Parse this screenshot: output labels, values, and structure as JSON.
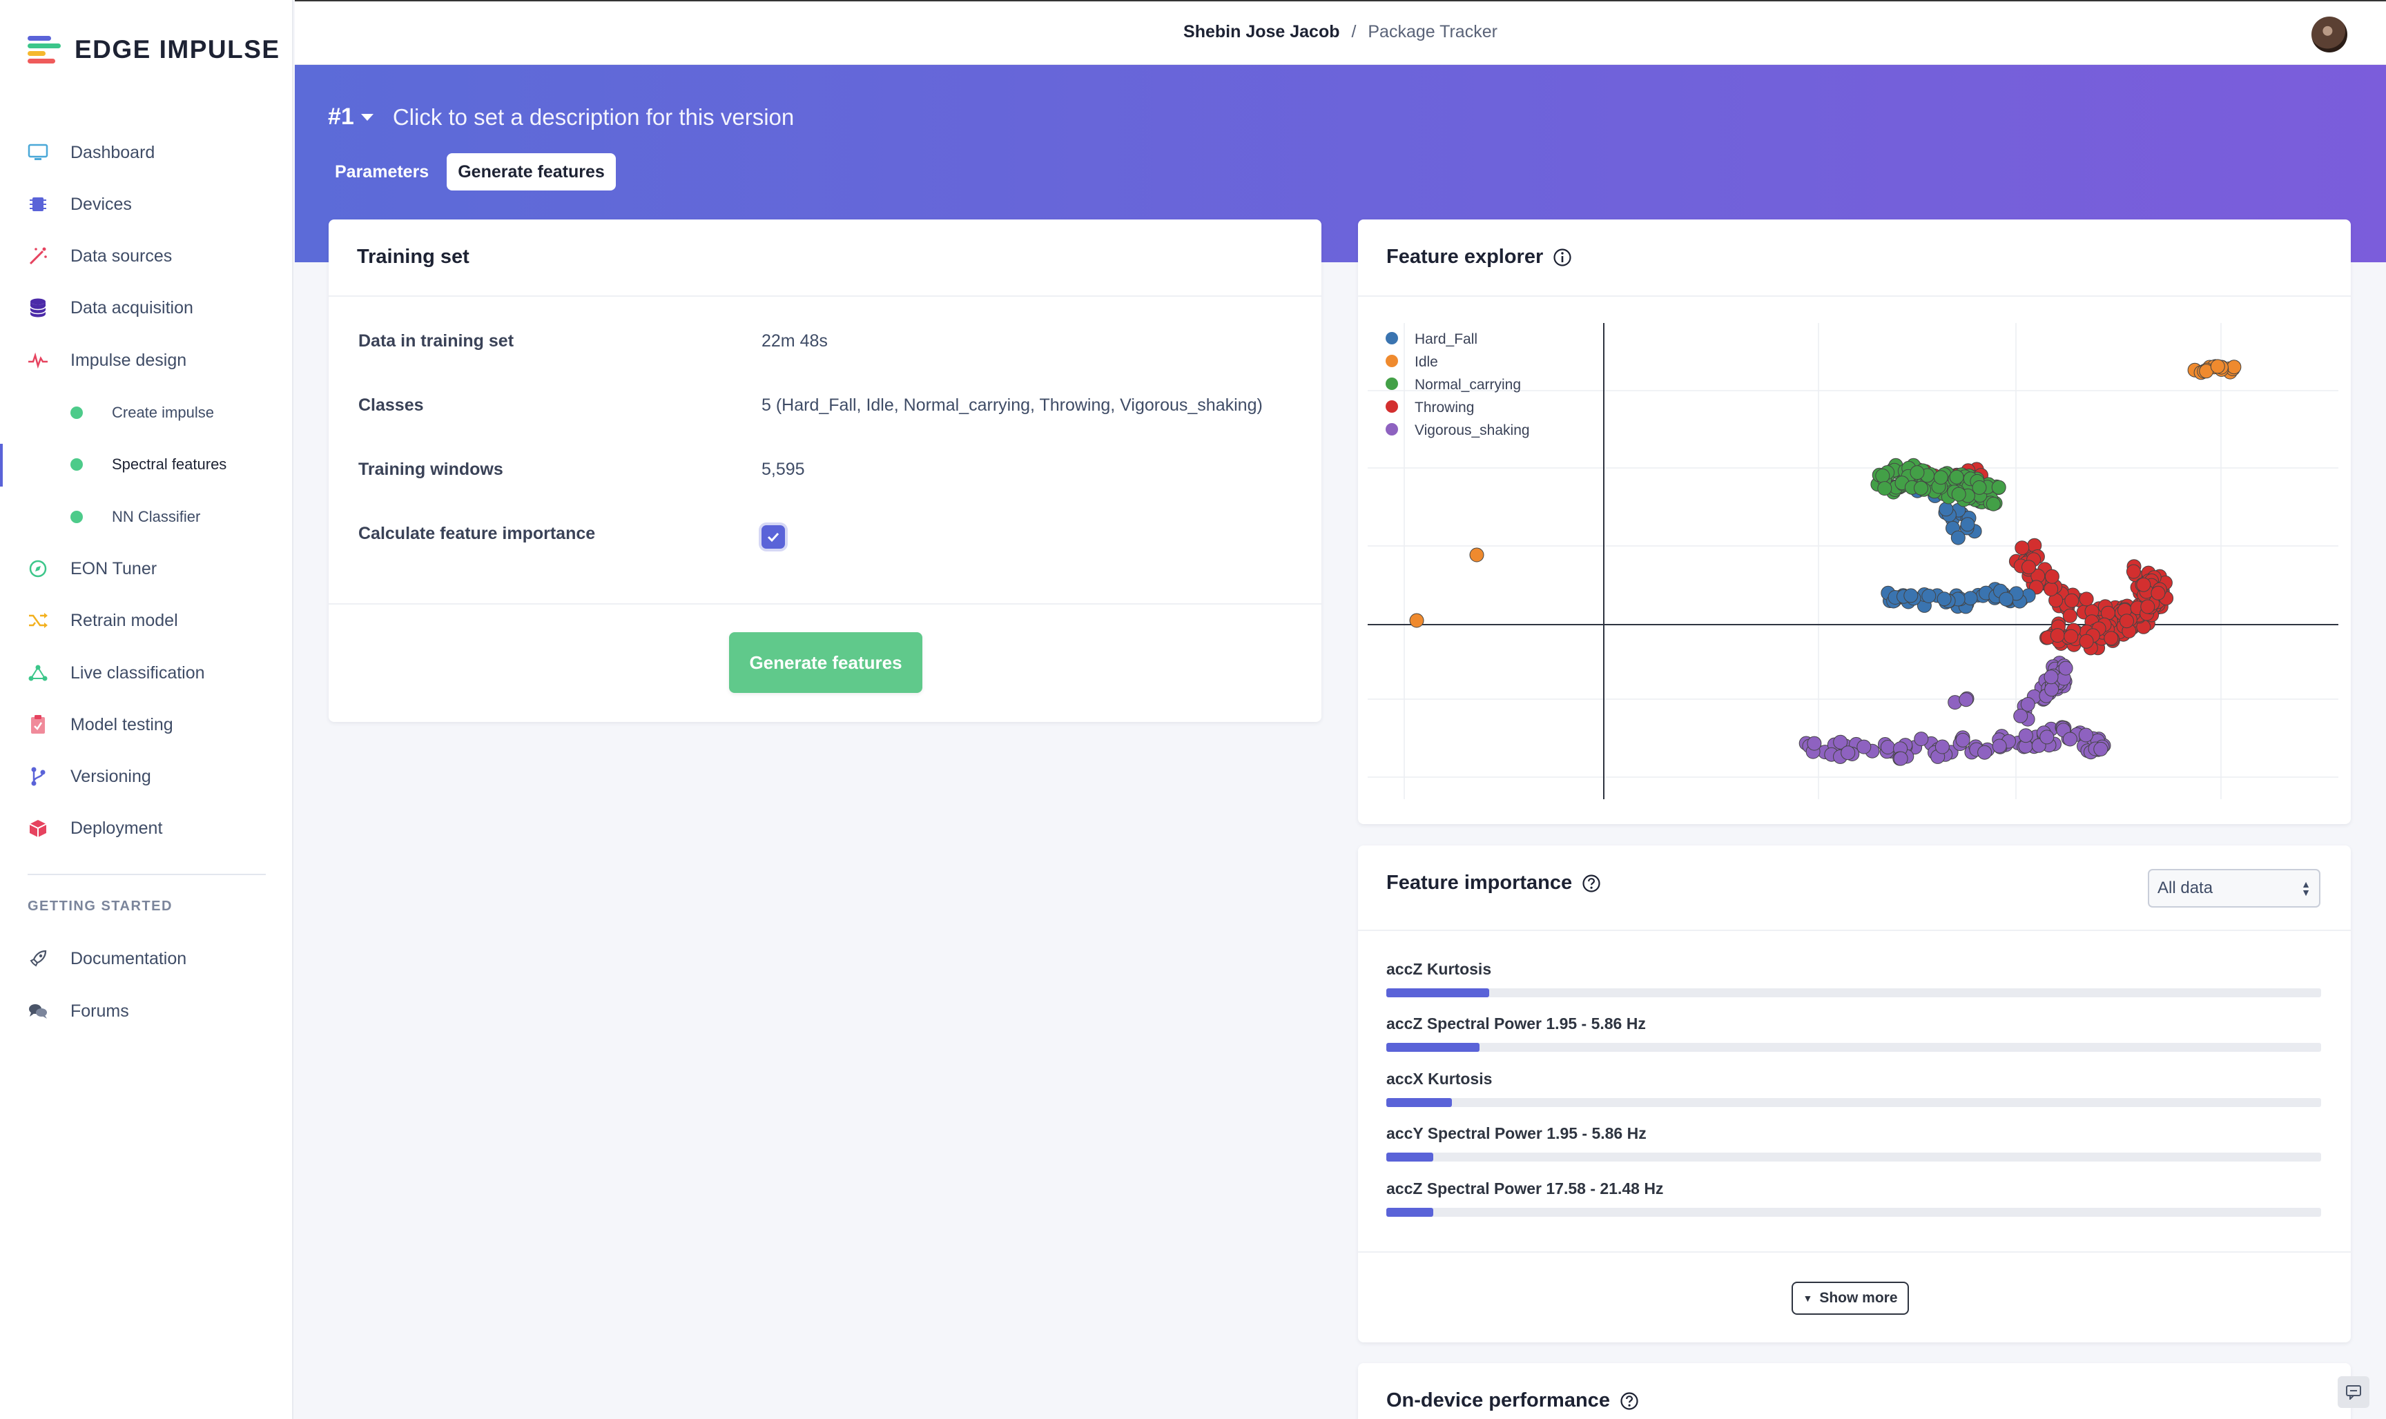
{
  "brand": {
    "name": "EDGE IMPULSE"
  },
  "sidebar": {
    "items": [
      {
        "label": "Dashboard",
        "icon": "monitor-icon"
      },
      {
        "label": "Devices",
        "icon": "chip-icon"
      },
      {
        "label": "Data sources",
        "icon": "wand-icon"
      },
      {
        "label": "Data acquisition",
        "icon": "database-icon"
      },
      {
        "label": "Impulse design",
        "icon": "pulse-icon"
      },
      {
        "label": "Create impulse"
      },
      {
        "label": "Spectral features"
      },
      {
        "label": "NN Classifier"
      },
      {
        "label": "EON Tuner",
        "icon": "compass-icon"
      },
      {
        "label": "Retrain model",
        "icon": "shuffle-icon"
      },
      {
        "label": "Live classification",
        "icon": "network-icon"
      },
      {
        "label": "Model testing",
        "icon": "clipboard-check-icon"
      },
      {
        "label": "Versioning",
        "icon": "branch-icon"
      },
      {
        "label": "Deployment",
        "icon": "box-icon"
      }
    ],
    "getting_started_heading": "GETTING STARTED",
    "getting_started": [
      {
        "label": "Documentation",
        "icon": "rocket-icon"
      },
      {
        "label": "Forums",
        "icon": "chat-bubbles-icon"
      }
    ]
  },
  "topbar": {
    "user": "Shebin Jose Jacob",
    "separator": "/",
    "project": "Package Tracker"
  },
  "version": {
    "number": "#1",
    "description": "Click to set a description for this version"
  },
  "tabs": [
    {
      "label": "Parameters"
    },
    {
      "label": "Generate features"
    }
  ],
  "training_set": {
    "title": "Training set",
    "rows": [
      {
        "label": "Data in training set",
        "value": "22m 48s"
      },
      {
        "label": "Classes",
        "value": "5 (Hard_Fall, Idle, Normal_carrying, Throwing, Vigorous_shaking)"
      },
      {
        "label": "Training windows",
        "value": "5,595"
      },
      {
        "label": "Calculate feature importance",
        "value": "checked"
      }
    ],
    "button": "Generate features"
  },
  "feature_explorer": {
    "title": "Feature explorer",
    "legend": [
      {
        "label": "Hard_Fall",
        "color": "#3a74b0"
      },
      {
        "label": "Idle",
        "color": "#ef8a2e"
      },
      {
        "label": "Normal_carrying",
        "color": "#43a047"
      },
      {
        "label": "Throwing",
        "color": "#d32f2f"
      },
      {
        "label": "Vigorous_shaking",
        "color": "#8e62c0"
      }
    ]
  },
  "feature_importance": {
    "title": "Feature importance",
    "filter": "All data",
    "features": [
      {
        "label": "accZ Kurtosis",
        "value": 0.11
      },
      {
        "label": "accZ Spectral Power 1.95 - 5.86 Hz",
        "value": 0.1
      },
      {
        "label": "accX Kurtosis",
        "value": 0.07
      },
      {
        "label": "accY Spectral Power 1.95 - 5.86 Hz",
        "value": 0.05
      },
      {
        "label": "accZ Spectral Power 17.58 - 21.48 Hz",
        "value": 0.05
      }
    ],
    "show_more": "Show more"
  },
  "on_device": {
    "title": "On-device performance"
  }
}
